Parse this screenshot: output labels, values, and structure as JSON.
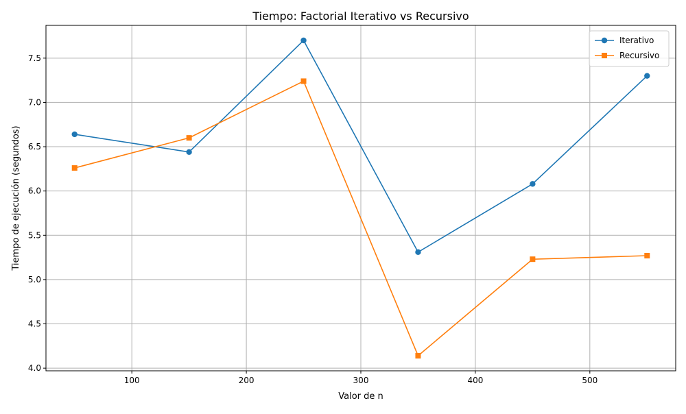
{
  "chart_data": {
    "type": "line",
    "title": "Tiempo: Factorial Iterativo vs Recursivo",
    "xlabel": "Valor de n",
    "ylabel": "Tiempo de ejecución (segundos)",
    "x": [
      50,
      150,
      250,
      350,
      450,
      550
    ],
    "xlim": [
      25,
      575
    ],
    "ylim": [
      3.97,
      7.87
    ],
    "xticks": [
      100,
      200,
      300,
      400,
      500
    ],
    "yticks": [
      4.0,
      4.5,
      5.0,
      5.5,
      6.0,
      6.5,
      7.0,
      7.5
    ],
    "ytick_labels": [
      "4.0",
      "4.5",
      "5.0",
      "5.5",
      "6.0",
      "6.5",
      "7.0",
      "7.5"
    ],
    "grid": true,
    "legend_position": "top-right",
    "series": [
      {
        "name": "Iterativo",
        "values": [
          6.64,
          6.44,
          7.7,
          5.31,
          6.08,
          7.3
        ],
        "color": "#1f77b4",
        "marker": "circle"
      },
      {
        "name": "Recursivo",
        "values": [
          6.26,
          6.6,
          7.24,
          4.14,
          5.23,
          5.27
        ],
        "color": "#ff7f0e",
        "marker": "square"
      }
    ]
  }
}
